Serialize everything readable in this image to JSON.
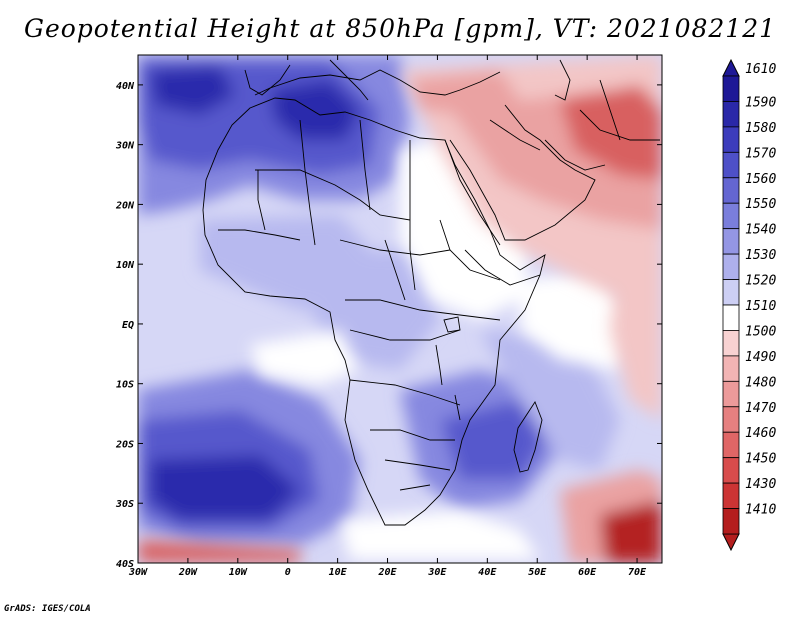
{
  "title": "Geopotential Height at 850hPa [gpm], VT: 2021082121",
  "credit": "GrADS: IGES/COLA",
  "map": {
    "lon_range": [
      -30,
      75
    ],
    "lat_range": [
      -40,
      45
    ],
    "lon_ticks": [
      {
        "value": -30,
        "label": "30W"
      },
      {
        "value": -20,
        "label": "20W"
      },
      {
        "value": -10,
        "label": "10W"
      },
      {
        "value": 0,
        "label": "0"
      },
      {
        "value": 10,
        "label": "10E"
      },
      {
        "value": 20,
        "label": "20E"
      },
      {
        "value": 30,
        "label": "30E"
      },
      {
        "value": 40,
        "label": "40E"
      },
      {
        "value": 50,
        "label": "50E"
      },
      {
        "value": 60,
        "label": "60E"
      },
      {
        "value": 70,
        "label": "70E"
      }
    ],
    "lat_ticks": [
      {
        "value": 40,
        "label": "40N"
      },
      {
        "value": 30,
        "label": "30N"
      },
      {
        "value": 20,
        "label": "20N"
      },
      {
        "value": 10,
        "label": "10N"
      },
      {
        "value": 0,
        "label": "EQ"
      },
      {
        "value": -10,
        "label": "10S"
      },
      {
        "value": -20,
        "label": "20S"
      },
      {
        "value": -30,
        "label": "30S"
      },
      {
        "value": -40,
        "label": "40S"
      }
    ]
  },
  "colorbar": {
    "levels": [
      {
        "label": "1610",
        "color": "#1e1896"
      },
      {
        "label": "1590",
        "color": "#2a28a8"
      },
      {
        "label": "1580",
        "color": "#3c3cbc"
      },
      {
        "label": "1570",
        "color": "#4e50c8"
      },
      {
        "label": "1560",
        "color": "#6466d2"
      },
      {
        "label": "1550",
        "color": "#7a7edc"
      },
      {
        "label": "1540",
        "color": "#9496e4"
      },
      {
        "label": "1530",
        "color": "#aeb0ec"
      },
      {
        "label": "1520",
        "color": "#cdcff4"
      },
      {
        "label": "1510",
        "color": "#ffffff"
      },
      {
        "label": "1500",
        "color": "#f8d2d2"
      },
      {
        "label": "1490",
        "color": "#f2b4b4"
      },
      {
        "label": "1480",
        "color": "#ec9a9a"
      },
      {
        "label": "1470",
        "color": "#e68080"
      },
      {
        "label": "1460",
        "color": "#e06666"
      },
      {
        "label": "1450",
        "color": "#d84c4c"
      },
      {
        "label": "1430",
        "color": "#cc3434"
      },
      {
        "label": "1410",
        "color": "#b41e1e"
      }
    ],
    "top_arrow_color": "#1e1896",
    "bottom_arrow_color": "#b41e1e"
  },
  "colors": {
    "ocean_base": "#d6d7f6",
    "white": "#ffffff",
    "light_blue": "#b7b9ef",
    "mid_blue": "#8688e0",
    "strong_blue": "#5658cc",
    "deep_blue": "#2c2cac",
    "light_red": "#f3c6c6",
    "mid_red": "#eaa2a2",
    "strong_red": "#d86060",
    "deep_red": "#b42222",
    "border": "#000000"
  }
}
